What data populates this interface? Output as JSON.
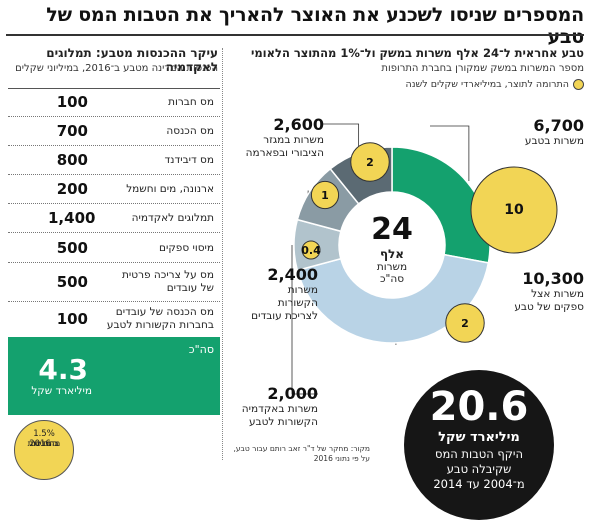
{
  "headline": "המספרים שניסו לשכנע את האוצר להאריך את הטבות המס של טבע",
  "chart_data": {
    "type": "pie",
    "title": "טבע אחראית ל־24 אלף משרות במשק ול־1% מהתוצר הלאומי",
    "subtitle": "מספר המשרות במשק שמקורן בחברת התרופות",
    "legend_label": "התרומה לתוצר, במיליארדי שקלים לשנה",
    "center": {
      "value": "24",
      "unit": "אלף",
      "caption_line1": "משרות",
      "caption_line2": "סה\"כ"
    },
    "segments": [
      {
        "value_label": "6,700",
        "jobs": 6700,
        "name_lines": [
          "משרות בטבע"
        ],
        "gdp_contribution": 10,
        "color": "#14a16e"
      },
      {
        "value_label": "10,300",
        "jobs": 10300,
        "name_lines": [
          "משרות אצל",
          "ספקים של טבע"
        ],
        "gdp_contribution": 2,
        "color": "#b9d3e6"
      },
      {
        "value_label": "2,000",
        "jobs": 2000,
        "name_lines": [
          "משרות באקדמיה",
          "הקשורות לטבע"
        ],
        "gdp_contribution": 0.4,
        "color": "#b1c3cc"
      },
      {
        "value_label": "2,400",
        "jobs": 2400,
        "name_lines": [
          "משרות",
          "הקשורות",
          "לצריכת עובדים"
        ],
        "gdp_contribution": 1,
        "color": "#8a9ba4"
      },
      {
        "value_label": "2,600",
        "jobs": 2600,
        "name_lines": [
          "משרות במגזר",
          "הציבורי ובפארמה"
        ],
        "gdp_contribution": 2,
        "color": "#5b6a73"
      }
    ],
    "bubble_labels": [
      "10",
      "2",
      "0.4",
      "1",
      "2"
    ]
  },
  "total": {
    "value": "20.6",
    "unit": "מיליארד שקל",
    "caption": [
      "היקף הטבות המס",
      "שקיבלה טבע",
      "מ־2004 עד 2014"
    ]
  },
  "source": "מקור: מחקר של ד\"ר זאב רותם עבור טבע, על פי נתוני 2016",
  "table": {
    "title": "עיקר ההכנסות מטבע: תמלוגים לאקדמיה",
    "subtitle": "הכנסות המדינה מטבע ב־2016, במיליוני שקלים",
    "rows": [
      {
        "name_lines": [
          "מס חברות"
        ],
        "value": "100"
      },
      {
        "name_lines": [
          "מס הכנסה"
        ],
        "value": "700"
      },
      {
        "name_lines": [
          "מס דיבידנד"
        ],
        "value": "800"
      },
      {
        "name_lines": [
          "ארנונה, מים וחשמל"
        ],
        "value": "200"
      },
      {
        "name_lines": [
          "תמלוגים לאקדמיה"
        ],
        "value": "1,400"
      },
      {
        "name_lines": [
          "מיסוי ספקים"
        ],
        "value": "500"
      },
      {
        "name_lines": [
          "מס על צריכה פרטית",
          "של עובדים"
        ],
        "value": "500"
      },
      {
        "name_lines": [
          "מס הכנסה של עובדים",
          "בחברות הקשורות לטבע"
        ],
        "value": "100"
      }
    ],
    "total_label": "סה\"כ",
    "total_value": "4.3",
    "total_unit": "מיליארד שקל",
    "share_value": "1.5%",
    "share_caption": [
      "מהכנסות",
      "המדינה",
      "ב־2016"
    ]
  }
}
